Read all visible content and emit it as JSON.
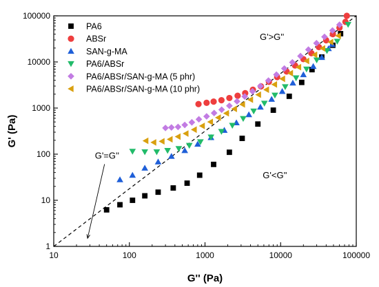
{
  "chart_data": {
    "type": "scatter",
    "x_scale": "log",
    "y_scale": "log",
    "xlabel": "G'' (Pa)",
    "ylabel": "G' (Pa)",
    "xlim": [
      10,
      100000
    ],
    "ylim": [
      1,
      100000
    ],
    "x_ticks": [
      "10",
      "100",
      "1000",
      "10000",
      "100000"
    ],
    "y_ticks": [
      "1",
      "10",
      "100",
      "1000",
      "10000",
      "100000"
    ],
    "grid": false,
    "legend_position": "top-left",
    "reference_line": {
      "label": "G'=G''",
      "from": [
        10,
        1
      ],
      "to": [
        100000,
        100000
      ],
      "style": "dashed"
    },
    "annotations": [
      {
        "text": "G'>G''",
        "x": 5300,
        "y": 30000
      },
      {
        "text": "G'<G''",
        "x": 5800,
        "y": 30
      },
      {
        "text": "G'=G''",
        "x": 35,
        "y": 80,
        "arrow_to": [
          28,
          1.5
        ]
      }
    ],
    "series": [
      {
        "name": "PA6",
        "marker": "square",
        "color": "#000000",
        "points": [
          [
            50,
            6.2
          ],
          [
            75,
            8
          ],
          [
            110,
            10
          ],
          [
            160,
            12.5
          ],
          [
            240,
            15
          ],
          [
            380,
            18.5
          ],
          [
            580,
            23.5
          ],
          [
            850,
            35
          ],
          [
            1300,
            60
          ],
          [
            2100,
            110
          ],
          [
            3100,
            220
          ],
          [
            5000,
            450
          ],
          [
            8000,
            900
          ],
          [
            13000,
            1800
          ],
          [
            19000,
            3600
          ],
          [
            26000,
            6800
          ],
          [
            35000,
            12800
          ],
          [
            49000,
            23000
          ],
          [
            62000,
            41000
          ]
        ]
      },
      {
        "name": "ABSr",
        "marker": "circle",
        "color": "#ee3e3e",
        "points": [
          [
            820,
            1220
          ],
          [
            1050,
            1300
          ],
          [
            1300,
            1380
          ],
          [
            1650,
            1480
          ],
          [
            2100,
            1650
          ],
          [
            2700,
            1850
          ],
          [
            3400,
            2100
          ],
          [
            4300,
            2500
          ],
          [
            5500,
            2950
          ],
          [
            7000,
            3700
          ],
          [
            9000,
            4700
          ],
          [
            12000,
            6200
          ],
          [
            15500,
            8400
          ],
          [
            20000,
            11500
          ],
          [
            25500,
            15500
          ],
          [
            32000,
            21000
          ],
          [
            40000,
            29500
          ],
          [
            49000,
            40000
          ],
          [
            60000,
            55000
          ],
          [
            72000,
            74000
          ],
          [
            75000,
            100000
          ]
        ]
      },
      {
        "name": "SAN-g-MA",
        "marker": "triangle-up",
        "color": "#1f5fd8",
        "points": [
          [
            75,
            28
          ],
          [
            110,
            35
          ],
          [
            160,
            50
          ],
          [
            240,
            68
          ],
          [
            360,
            90
          ],
          [
            540,
            120
          ],
          [
            800,
            165
          ],
          [
            1200,
            230
          ],
          [
            1800,
            330
          ],
          [
            2600,
            480
          ],
          [
            3800,
            720
          ],
          [
            5400,
            1050
          ],
          [
            7600,
            1550
          ],
          [
            10500,
            2300
          ],
          [
            14500,
            3500
          ],
          [
            20000,
            5300
          ],
          [
            27000,
            8000
          ],
          [
            35000,
            12500
          ],
          [
            43000,
            19500
          ],
          [
            48000,
            24000
          ]
        ]
      },
      {
        "name": "PA6/ABSr",
        "marker": "triangle-down",
        "color": "#22bb6a",
        "points": [
          [
            110,
            115
          ],
          [
            160,
            112
          ],
          [
            230,
            112
          ],
          [
            320,
            120
          ],
          [
            450,
            132
          ],
          [
            620,
            155
          ],
          [
            870,
            185
          ],
          [
            1200,
            235
          ],
          [
            1650,
            310
          ],
          [
            2300,
            420
          ],
          [
            3200,
            590
          ],
          [
            4400,
            860
          ],
          [
            6100,
            1270
          ],
          [
            8400,
            1900
          ],
          [
            11500,
            2900
          ],
          [
            16000,
            4500
          ],
          [
            22000,
            7000
          ],
          [
            30000,
            11000
          ],
          [
            41000,
            17500
          ],
          [
            56000,
            28000
          ],
          [
            78000,
            65000
          ]
        ]
      },
      {
        "name": "PA6/ABSr/SAN-g-MA (5 phr)",
        "marker": "diamond",
        "color": "#c27ce3",
        "points": [
          [
            300,
            370
          ],
          [
            360,
            380
          ],
          [
            440,
            390
          ],
          [
            540,
            430
          ],
          [
            670,
            490
          ],
          [
            830,
            570
          ],
          [
            1050,
            660
          ],
          [
            1320,
            780
          ],
          [
            1660,
            920
          ],
          [
            2100,
            1120
          ],
          [
            2650,
            1400
          ],
          [
            3350,
            1780
          ],
          [
            4250,
            2300
          ],
          [
            5400,
            3000
          ],
          [
            6900,
            3950
          ],
          [
            8800,
            5300
          ],
          [
            11200,
            7200
          ],
          [
            14300,
            9800
          ],
          [
            18300,
            13400
          ],
          [
            23300,
            18500
          ],
          [
            29800,
            25500
          ],
          [
            38000,
            35000
          ],
          [
            48500,
            48000
          ],
          [
            60000,
            64000
          ]
        ]
      },
      {
        "name": "PA6/ABSr/SAN-g-MA (10 phr)",
        "marker": "triangle-left",
        "color": "#d9a00f",
        "points": [
          [
            165,
            195
          ],
          [
            210,
            180
          ],
          [
            270,
            190
          ],
          [
            345,
            210
          ],
          [
            440,
            240
          ],
          [
            560,
            280
          ],
          [
            720,
            340
          ],
          [
            920,
            410
          ],
          [
            1180,
            500
          ],
          [
            1500,
            620
          ],
          [
            1920,
            770
          ],
          [
            2450,
            960
          ],
          [
            3130,
            1200
          ],
          [
            4000,
            1520
          ],
          [
            5100,
            1950
          ],
          [
            6500,
            2500
          ],
          [
            8300,
            3250
          ],
          [
            10600,
            4300
          ],
          [
            13500,
            5700
          ],
          [
            17300,
            7700
          ],
          [
            22100,
            10500
          ],
          [
            28200,
            14300
          ],
          [
            36000,
            19700
          ],
          [
            46000,
            27000
          ],
          [
            58000,
            37000
          ]
        ]
      }
    ]
  }
}
